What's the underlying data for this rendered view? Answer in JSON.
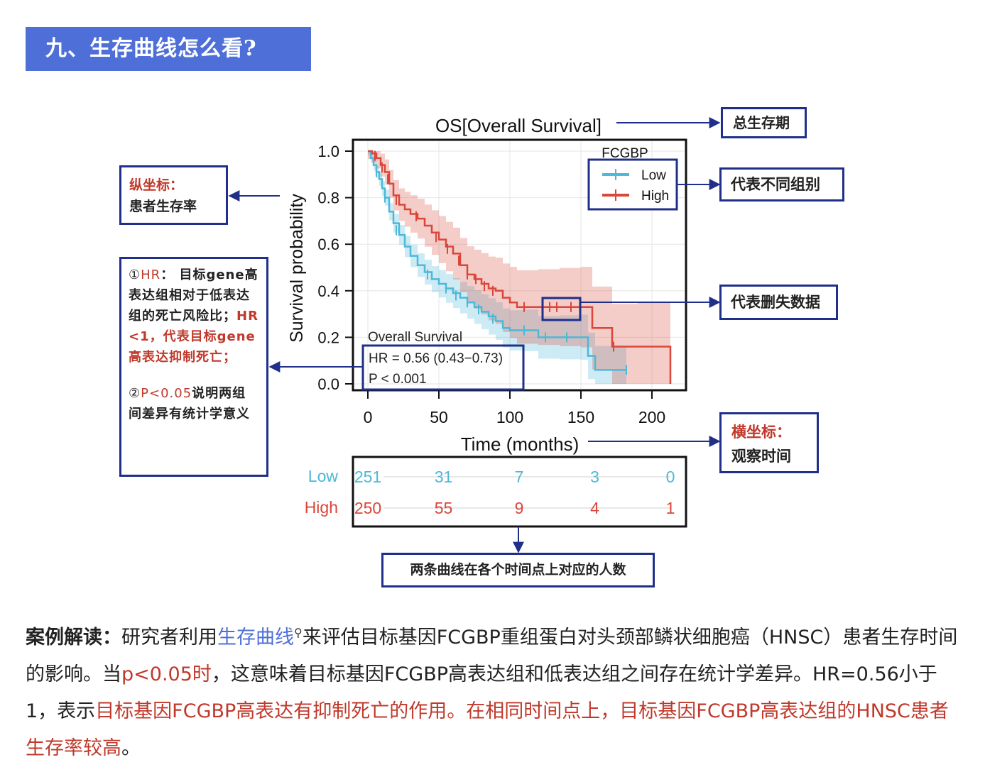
{
  "banner": {
    "title": "九、生存曲线怎么看?"
  },
  "annotations": {
    "os_label": "总生存期",
    "ylabel_label_1": "纵坐标：",
    "ylabel_label_2": "患者生存率",
    "groups_label": "代表不同组别",
    "censored_label": "代表删失数据",
    "xlabel_label_1": "横坐标：",
    "xlabel_label_2": "观察时间",
    "risk_label": "两条曲线在各个时间点上对应的人数",
    "hr_box": {
      "p1_num": "①",
      "p1_hr": "HR",
      "p1_rest": "： 目标gene高表达组相对于低表达组的死亡风险比；",
      "p1_red": "HR<1，代表目标gene高表达抑制死亡；",
      "p2_num": "②",
      "p2_red": "P<0.05",
      "p2_rest": "说明两组间差异有统计学意义"
    }
  },
  "chart_data": {
    "type": "line",
    "title": "OS[Overall Survival]",
    "xlabel": "Time (months)",
    "ylabel": "Survival probability",
    "xlim": [
      0,
      215
    ],
    "ylim": [
      0,
      1.0
    ],
    "xticks": [
      "0",
      "50",
      "100",
      "150",
      "200"
    ],
    "yticks": [
      "0.0",
      "0.2",
      "0.4",
      "0.6",
      "0.8",
      "1.0"
    ],
    "legend_title": "FCGBP",
    "legend_position": "top-right",
    "colors": {
      "Low": "#4db8d8",
      "High": "#d9473b"
    },
    "series": [
      {
        "name": "Low",
        "points": [
          [
            0,
            1.0
          ],
          [
            2,
            0.97
          ],
          [
            4,
            0.94
          ],
          [
            6,
            0.91
          ],
          [
            8,
            0.88
          ],
          [
            10,
            0.84
          ],
          [
            12,
            0.8
          ],
          [
            15,
            0.74
          ],
          [
            18,
            0.69
          ],
          [
            22,
            0.64
          ],
          [
            26,
            0.59
          ],
          [
            30,
            0.55
          ],
          [
            35,
            0.51
          ],
          [
            40,
            0.48
          ],
          [
            45,
            0.45
          ],
          [
            50,
            0.43
          ],
          [
            55,
            0.41
          ],
          [
            60,
            0.39
          ],
          [
            65,
            0.37
          ],
          [
            70,
            0.35
          ],
          [
            75,
            0.33
          ],
          [
            80,
            0.31
          ],
          [
            85,
            0.29
          ],
          [
            90,
            0.27
          ],
          [
            95,
            0.24
          ],
          [
            100,
            0.23
          ],
          [
            110,
            0.23
          ],
          [
            120,
            0.2
          ],
          [
            135,
            0.2
          ],
          [
            150,
            0.2
          ],
          [
            155,
            0.12
          ],
          [
            160,
            0.06
          ],
          [
            182,
            0.06
          ]
        ],
        "censored": [
          [
            6,
            0.91
          ],
          [
            12,
            0.8
          ],
          [
            20,
            0.66
          ],
          [
            42,
            0.47
          ],
          [
            55,
            0.41
          ],
          [
            62,
            0.38
          ],
          [
            70,
            0.35
          ],
          [
            78,
            0.32
          ],
          [
            88,
            0.28
          ],
          [
            110,
            0.23
          ],
          [
            125,
            0.2
          ],
          [
            140,
            0.2
          ],
          [
            182,
            0.06
          ]
        ]
      },
      {
        "name": "High",
        "points": [
          [
            0,
            1.0
          ],
          [
            3,
            0.99
          ],
          [
            6,
            0.97
          ],
          [
            9,
            0.94
          ],
          [
            12,
            0.91
          ],
          [
            15,
            0.86
          ],
          [
            18,
            0.81
          ],
          [
            22,
            0.77
          ],
          [
            26,
            0.75
          ],
          [
            30,
            0.73
          ],
          [
            35,
            0.71
          ],
          [
            40,
            0.68
          ],
          [
            45,
            0.65
          ],
          [
            50,
            0.62
          ],
          [
            55,
            0.59
          ],
          [
            60,
            0.56
          ],
          [
            65,
            0.51
          ],
          [
            70,
            0.47
          ],
          [
            75,
            0.45
          ],
          [
            80,
            0.43
          ],
          [
            85,
            0.41
          ],
          [
            90,
            0.4
          ],
          [
            95,
            0.37
          ],
          [
            100,
            0.35
          ],
          [
            105,
            0.33
          ],
          [
            120,
            0.33
          ],
          [
            135,
            0.33
          ],
          [
            150,
            0.33
          ],
          [
            158,
            0.24
          ],
          [
            172,
            0.16
          ],
          [
            190,
            0.16
          ],
          [
            212,
            0.16
          ],
          [
            213,
            0.0
          ]
        ],
        "censored": [
          [
            5,
            0.98
          ],
          [
            10,
            0.93
          ],
          [
            14,
            0.88
          ],
          [
            20,
            0.79
          ],
          [
            34,
            0.72
          ],
          [
            48,
            0.63
          ],
          [
            56,
            0.58
          ],
          [
            64,
            0.53
          ],
          [
            70,
            0.47
          ],
          [
            76,
            0.45
          ],
          [
            82,
            0.42
          ],
          [
            88,
            0.4
          ],
          [
            110,
            0.33
          ],
          [
            128,
            0.33
          ],
          [
            133,
            0.33
          ],
          [
            143,
            0.33
          ],
          [
            173,
            0.16
          ]
        ]
      }
    ],
    "annotation": {
      "label": "Overall Survival",
      "hr": "HR = 0.56 (0.43−0.73)",
      "p": "P < 0.001"
    },
    "risk_table": {
      "rows": [
        {
          "name": "Low",
          "values": [
            "251",
            "31",
            "7",
            "3",
            "0"
          ]
        },
        {
          "name": "High",
          "values": [
            "250",
            "55",
            "9",
            "4",
            "1"
          ]
        }
      ],
      "times": [
        0,
        50,
        100,
        150,
        200
      ]
    }
  },
  "paragraph": {
    "lead": "案例解读：",
    "t1": "研究者利用",
    "link": "生存曲线",
    "search_icon": "search-icon",
    "t2": "来评估目标基因FCGBP重组蛋白对头颈部鳞状细胞癌（HNSC）患者生存时间的影响。当",
    "r1": "p<0.05时",
    "t3": "，这意味着目标基因FCGBP高表达组和低表达组之间存在统计学差异。HR=0.56小于1，表示",
    "r2": "目标基因FCGBP高表达有抑制死亡的作用。在相同时间点上，目标基因FCGBP高表达组的HNSC患者生存率较高",
    "t4": "。"
  }
}
